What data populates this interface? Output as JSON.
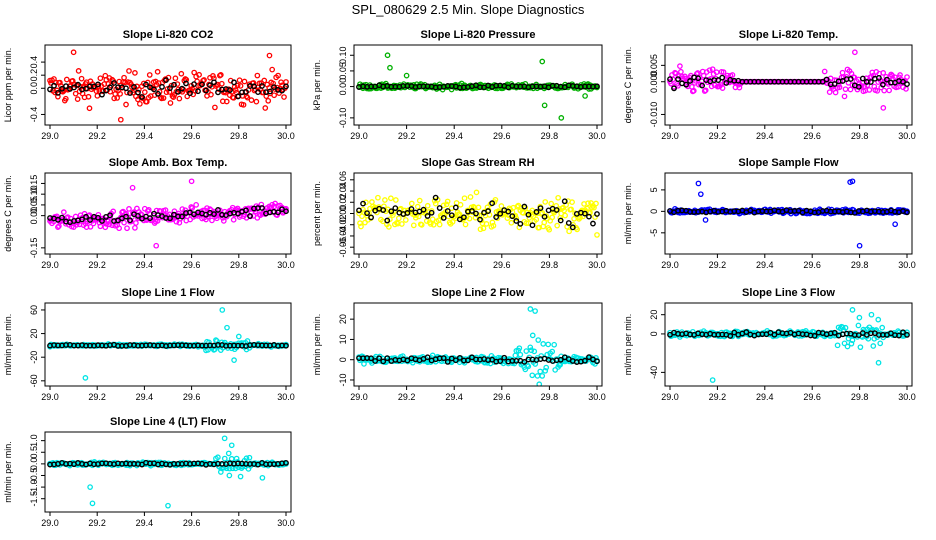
{
  "page": {
    "title": "SPL_080629  2.5 Min. Slope Diagnostics"
  },
  "chart_data": [
    {
      "type": "scatter",
      "title": "Slope Li-820 CO2",
      "ylabel": "Licor ppm per min.",
      "xlim": [
        29.0,
        30.0
      ],
      "ylim": [
        -0.5,
        0.6
      ],
      "xticks": [
        "29.0",
        "29.2",
        "29.4",
        "29.6",
        "29.8",
        "30.0"
      ],
      "yticks": [
        "-0.4",
        "0.0",
        "0.2",
        "0.4"
      ],
      "color": "#ff0000",
      "series": [
        {
          "name": "all",
          "amp": 0.45,
          "spread": 0.24,
          "outliers": [
            [
              29.1,
              0.55
            ],
            [
              29.3,
              -0.48
            ],
            [
              29.93,
              0.5
            ]
          ]
        },
        {
          "name": "summary",
          "amp": 0.2,
          "spread": 0.12
        }
      ]
    },
    {
      "type": "scatter",
      "title": "Slope Li-820 Pressure",
      "ylabel": "kPa per min.",
      "xlim": [
        29.0,
        30.0
      ],
      "ylim": [
        -0.11,
        0.12
      ],
      "xticks": [
        "29.0",
        "29.2",
        "29.4",
        "29.6",
        "29.8",
        "30.0"
      ],
      "yticks": [
        "-0.10",
        "0.00",
        "0.05",
        "0.10"
      ],
      "color": "#00b000",
      "series": [
        {
          "name": "all",
          "amp": 0.02,
          "spread": 0.008,
          "outliers": [
            [
              29.12,
              0.1
            ],
            [
              29.13,
              0.06
            ],
            [
              29.2,
              0.035
            ],
            [
              29.77,
              0.08
            ],
            [
              29.78,
              -0.06
            ],
            [
              29.85,
              -0.1
            ],
            [
              29.95,
              -0.03
            ]
          ]
        },
        {
          "name": "summary",
          "amp": 0.01,
          "spread": 0.004
        }
      ]
    },
    {
      "type": "scatter",
      "title": "Slope Li-820 Temp.",
      "ylabel": "degrees C per min.",
      "xlim": [
        29.0,
        30.0
      ],
      "ylim": [
        -0.012,
        0.01
      ],
      "xticks": [
        "29.0",
        "29.2",
        "29.4",
        "29.6",
        "29.8",
        "30.0"
      ],
      "yticks": [
        "-0.010",
        "0.000",
        "0.005"
      ],
      "color": "#ff00ff",
      "series": [
        {
          "name": "all",
          "amp": 0.008,
          "spread": 0.004,
          "flat": [
            29.3,
            29.65
          ],
          "outliers": [
            [
              29.78,
              0.009
            ],
            [
              29.9,
              -0.008
            ]
          ]
        },
        {
          "name": "summary",
          "amp": 0.004,
          "spread": 0.002,
          "flat": [
            29.3,
            29.65
          ]
        }
      ]
    },
    {
      "type": "scatter",
      "title": "Slope Amb. Box Temp.",
      "ylabel": "degrees C per min.",
      "xlim": [
        29.0,
        30.0
      ],
      "ylim": [
        -0.16,
        0.18
      ],
      "xticks": [
        "29.0",
        "29.2",
        "29.4",
        "29.6",
        "29.8",
        "30.0"
      ],
      "yticks": [
        "-0.15",
        "0.00",
        "0.05",
        "0.10",
        "0.15"
      ],
      "color": "#ff00ff",
      "series": [
        {
          "name": "all",
          "amp": 0.08,
          "spread": 0.04,
          "trend": 0.06,
          "outliers": [
            [
              29.35,
              0.13
            ],
            [
              29.6,
              0.16
            ],
            [
              29.45,
              -0.14
            ]
          ]
        },
        {
          "name": "summary",
          "amp": 0.04,
          "spread": 0.02,
          "trend": 0.05
        }
      ]
    },
    {
      "type": "scatter",
      "title": "Slope Gas Stream RH",
      "ylabel": "percent per min.",
      "xlim": [
        29.0,
        30.0
      ],
      "ylim": [
        -0.065,
        0.065
      ],
      "xticks": [
        "29.0",
        "29.2",
        "29.4",
        "29.6",
        "29.8",
        "30.0"
      ],
      "yticks": [
        "-0.06",
        "-0.04",
        "-0.02",
        "0.00",
        "0.02",
        "0.04",
        "0.06"
      ],
      "color": "#ffff00",
      "series": [
        {
          "name": "all",
          "amp": 0.055,
          "spread": 0.03
        },
        {
          "name": "summary",
          "amp": 0.04,
          "spread": 0.02
        }
      ]
    },
    {
      "type": "scatter",
      "title": "Slope Sample Flow",
      "ylabel": "ml/min per min.",
      "xlim": [
        29.0,
        30.0
      ],
      "ylim": [
        -9,
        8
      ],
      "xticks": [
        "29.0",
        "29.2",
        "29.4",
        "29.6",
        "29.8",
        "30.0"
      ],
      "yticks": [
        "-5",
        "0",
        "5"
      ],
      "color": "#0000ff",
      "series": [
        {
          "name": "all",
          "amp": 1.2,
          "spread": 0.5,
          "outliers": [
            [
              29.12,
              6.5
            ],
            [
              29.13,
              4
            ],
            [
              29.15,
              -2
            ],
            [
              29.76,
              6.8
            ],
            [
              29.77,
              7
            ],
            [
              29.8,
              -8
            ],
            [
              29.95,
              -3
            ]
          ]
        },
        {
          "name": "summary",
          "amp": 0.6,
          "spread": 0.3
        }
      ]
    },
    {
      "type": "scatter",
      "title": "Slope Line 1 Flow",
      "ylabel": "ml/min per min.",
      "xlim": [
        29.0,
        30.0
      ],
      "ylim": [
        -62,
        65
      ],
      "xticks": [
        "29.0",
        "29.2",
        "29.4",
        "29.6",
        "29.8",
        "30.0"
      ],
      "yticks": [
        "-60",
        "-20",
        "20",
        "60"
      ],
      "color": "#00e5e5",
      "series": [
        {
          "name": "all",
          "amp": 4,
          "spread": 2,
          "burst": [
            29.65,
            29.85
          ],
          "outliers": [
            [
              29.15,
              -55
            ],
            [
              29.73,
              60
            ],
            [
              29.75,
              30
            ],
            [
              29.78,
              -25
            ],
            [
              29.8,
              15
            ]
          ]
        },
        {
          "name": "summary",
          "amp": 2,
          "spread": 1
        }
      ]
    },
    {
      "type": "scatter",
      "title": "Slope Line 2 Flow",
      "ylabel": "ml/min per min.",
      "xlim": [
        29.0,
        30.0
      ],
      "ylim": [
        -11,
        26
      ],
      "xticks": [
        "29.0",
        "29.2",
        "29.4",
        "29.6",
        "29.8",
        "30.0"
      ],
      "yticks": [
        "-10",
        "0",
        "10",
        "20"
      ],
      "color": "#00e5e5",
      "series": [
        {
          "name": "all",
          "amp": 4,
          "spread": 2,
          "burst": [
            29.65,
            29.85
          ],
          "outliers": [
            [
              29.72,
              25
            ],
            [
              29.74,
              24
            ],
            [
              29.73,
              12
            ],
            [
              29.75,
              -8
            ]
          ]
        },
        {
          "name": "summary",
          "amp": 2,
          "spread": 1.5
        }
      ]
    },
    {
      "type": "scatter",
      "title": "Slope Line 3 Flow",
      "ylabel": "ml/min per min.",
      "xlim": [
        29.0,
        30.0
      ],
      "ylim": [
        -50,
        28
      ],
      "xticks": [
        "29.0",
        "29.2",
        "29.4",
        "29.6",
        "29.8",
        "30.0"
      ],
      "yticks": [
        "-40",
        "0",
        "20"
      ],
      "color": "#00e5e5",
      "series": [
        {
          "name": "all",
          "amp": 6,
          "spread": 3,
          "burst": [
            29.7,
            29.9
          ],
          "outliers": [
            [
              29.18,
              -48
            ],
            [
              29.77,
              25
            ],
            [
              29.85,
              20
            ],
            [
              29.88,
              -30
            ]
          ]
        },
        {
          "name": "summary",
          "amp": 3,
          "spread": 2
        }
      ]
    },
    {
      "type": "scatter",
      "title": "Slope Line 4 (LT) Flow",
      "ylabel": "ml/min per min.",
      "xlim": [
        29.0,
        30.0
      ],
      "ylim": [
        -1.9,
        1.2
      ],
      "xticks": [
        "29.0",
        "29.2",
        "29.4",
        "29.6",
        "29.8",
        "30.0"
      ],
      "yticks": [
        "-1.5",
        "-1.0",
        "-0.5",
        "0.0",
        "0.5",
        "1.0"
      ],
      "color": "#00e5e5",
      "series": [
        {
          "name": "all",
          "amp": 0.15,
          "spread": 0.08,
          "burst": [
            29.7,
            29.85
          ],
          "outliers": [
            [
              29.18,
              -1.7
            ],
            [
              29.17,
              -1.0
            ],
            [
              29.74,
              1.1
            ],
            [
              29.77,
              0.8
            ],
            [
              29.76,
              -0.5
            ],
            [
              29.9,
              -0.6
            ],
            [
              29.5,
              -1.8
            ]
          ]
        },
        {
          "name": "summary",
          "amp": 0.05,
          "spread": 0.04
        }
      ]
    }
  ]
}
